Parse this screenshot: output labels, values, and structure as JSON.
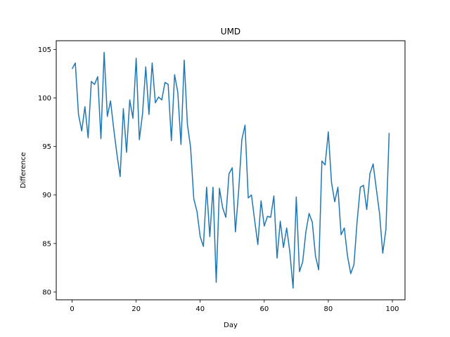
{
  "chart_data": {
    "type": "line",
    "title": "UMD",
    "xlabel": "Day",
    "ylabel": "Difference",
    "xlim": [
      -4.95,
      103.95
    ],
    "ylim": [
      79.2,
      105.9
    ],
    "xticks": [
      0,
      20,
      40,
      60,
      80,
      100
    ],
    "yticks": [
      80,
      85,
      90,
      95,
      100,
      105
    ],
    "grid": false,
    "legend": "none",
    "line_color": "#1f77b4",
    "series": [
      {
        "x": [
          0,
          1,
          2,
          3,
          4,
          5,
          6,
          7,
          8,
          9,
          10,
          11,
          12,
          13,
          14,
          15,
          16,
          17,
          18,
          19,
          20,
          21,
          22,
          23,
          24,
          25,
          26,
          27,
          28,
          29,
          30,
          31,
          32,
          33,
          34,
          35,
          36,
          37,
          38,
          39,
          40,
          41,
          42,
          43,
          44,
          45,
          46,
          47,
          48,
          49,
          50,
          51,
          52,
          53,
          54,
          55,
          56,
          57,
          58,
          59,
          60,
          61,
          62,
          63,
          64,
          65,
          66,
          67,
          68,
          69,
          70,
          71,
          72,
          73,
          74,
          75,
          76,
          77,
          78,
          79,
          80,
          81,
          82,
          83,
          84,
          85,
          86,
          87,
          88,
          89,
          90,
          91,
          92,
          93,
          94,
          95,
          96,
          97,
          98,
          99
        ],
        "values": [
          103.0,
          103.6,
          98.3,
          96.6,
          99.1,
          95.9,
          101.7,
          101.4,
          102.2,
          95.8,
          104.7,
          98.1,
          99.7,
          96.8,
          94.2,
          91.9,
          98.9,
          94.4,
          99.8,
          97.9,
          104.1,
          95.7,
          98.4,
          103.2,
          98.3,
          103.6,
          99.5,
          100.1,
          99.8,
          101.6,
          101.4,
          95.6,
          102.4,
          100.6,
          95.2,
          103.9,
          97.3,
          94.9,
          89.6,
          88.3,
          85.7,
          84.7,
          90.8,
          85.7,
          90.8,
          81.0,
          90.7,
          88.7,
          87.7,
          92.2,
          92.8,
          86.2,
          90.4,
          95.7,
          97.2,
          89.7,
          90.0,
          87.4,
          84.9,
          89.4,
          86.8,
          87.8,
          87.7,
          89.9,
          83.5,
          87.3,
          84.6,
          86.6,
          84.1,
          80.4,
          89.8,
          82.1,
          83.1,
          86.2,
          88.1,
          87.2,
          83.7,
          82.3,
          93.5,
          93.1,
          96.5,
          91.3,
          89.3,
          90.8,
          85.9,
          86.6,
          83.7,
          81.9,
          82.8,
          87.3,
          90.8,
          91.0,
          88.5,
          92.2,
          93.2,
          90.6,
          88.1,
          84.0,
          86.5,
          96.4
        ]
      }
    ]
  }
}
